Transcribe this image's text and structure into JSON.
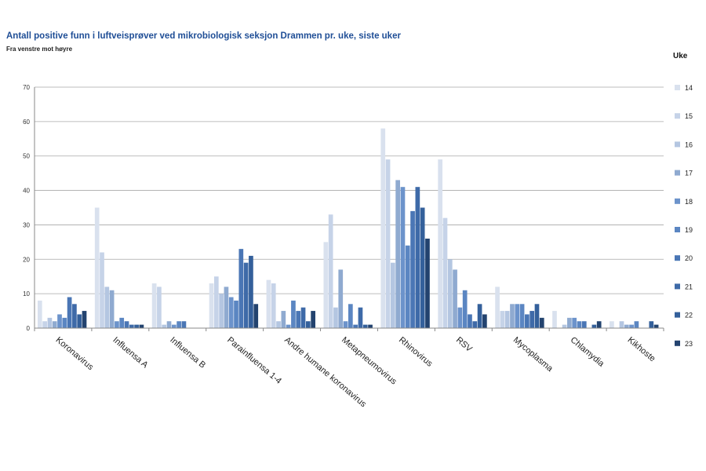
{
  "chart_data": {
    "type": "bar",
    "title": "Antall positive funn i luftveisprøver ved mikrobiologisk seksjon Drammen pr. uke, siste uker",
    "subtitle": "Fra venstre mot høyre",
    "legend_title": "Uke",
    "legend_position": "right",
    "grid": true,
    "ylim": [
      0,
      70
    ],
    "yticks": [
      0,
      10,
      20,
      30,
      40,
      50,
      60,
      70
    ],
    "categories": [
      "Koronavirus",
      "Influensa A",
      "Influensa B",
      "Parainfluensa 1-4",
      "Andre humane koronavirus",
      "Metapneumovirus",
      "Rhinovirus",
      "RSV",
      "Mycoplasma",
      "Chlamydia",
      "Kikhoste"
    ],
    "series": [
      {
        "name": "14",
        "color": "#d9e1ee",
        "values": [
          8,
          35,
          13,
          13,
          14,
          25,
          58,
          49,
          12,
          5,
          2
        ]
      },
      {
        "name": "15",
        "color": "#c6d3e8",
        "values": [
          2,
          22,
          12,
          15,
          13,
          33,
          49,
          32,
          5,
          0,
          0
        ]
      },
      {
        "name": "16",
        "color": "#b4c6e1",
        "values": [
          3,
          12,
          1,
          10,
          2,
          6,
          19,
          20,
          5,
          1,
          2
        ]
      },
      {
        "name": "17",
        "color": "#8faad0",
        "values": [
          2,
          11,
          2,
          12,
          5,
          17,
          43,
          17,
          7,
          3,
          1
        ]
      },
      {
        "name": "18",
        "color": "#6c93cb",
        "values": [
          4,
          2,
          1,
          9,
          1,
          2,
          41,
          6,
          7,
          3,
          1
        ]
      },
      {
        "name": "19",
        "color": "#5b86c2",
        "values": [
          3,
          3,
          2,
          8,
          8,
          7,
          24,
          11,
          7,
          2,
          2
        ]
      },
      {
        "name": "20",
        "color": "#4a76b5",
        "values": [
          9,
          2,
          2,
          23,
          5,
          1,
          34,
          4,
          4,
          2,
          0
        ]
      },
      {
        "name": "21",
        "color": "#3e6aa8",
        "values": [
          7,
          1,
          0,
          19,
          6,
          6,
          41,
          2,
          5,
          0,
          0
        ]
      },
      {
        "name": "22",
        "color": "#34609b",
        "values": [
          4,
          1,
          0,
          21,
          2,
          1,
          35,
          7,
          7,
          1,
          2
        ]
      },
      {
        "name": "23",
        "color": "#23436f",
        "values": [
          5,
          1,
          0,
          7,
          5,
          1,
          26,
          4,
          3,
          2,
          1
        ]
      }
    ]
  }
}
